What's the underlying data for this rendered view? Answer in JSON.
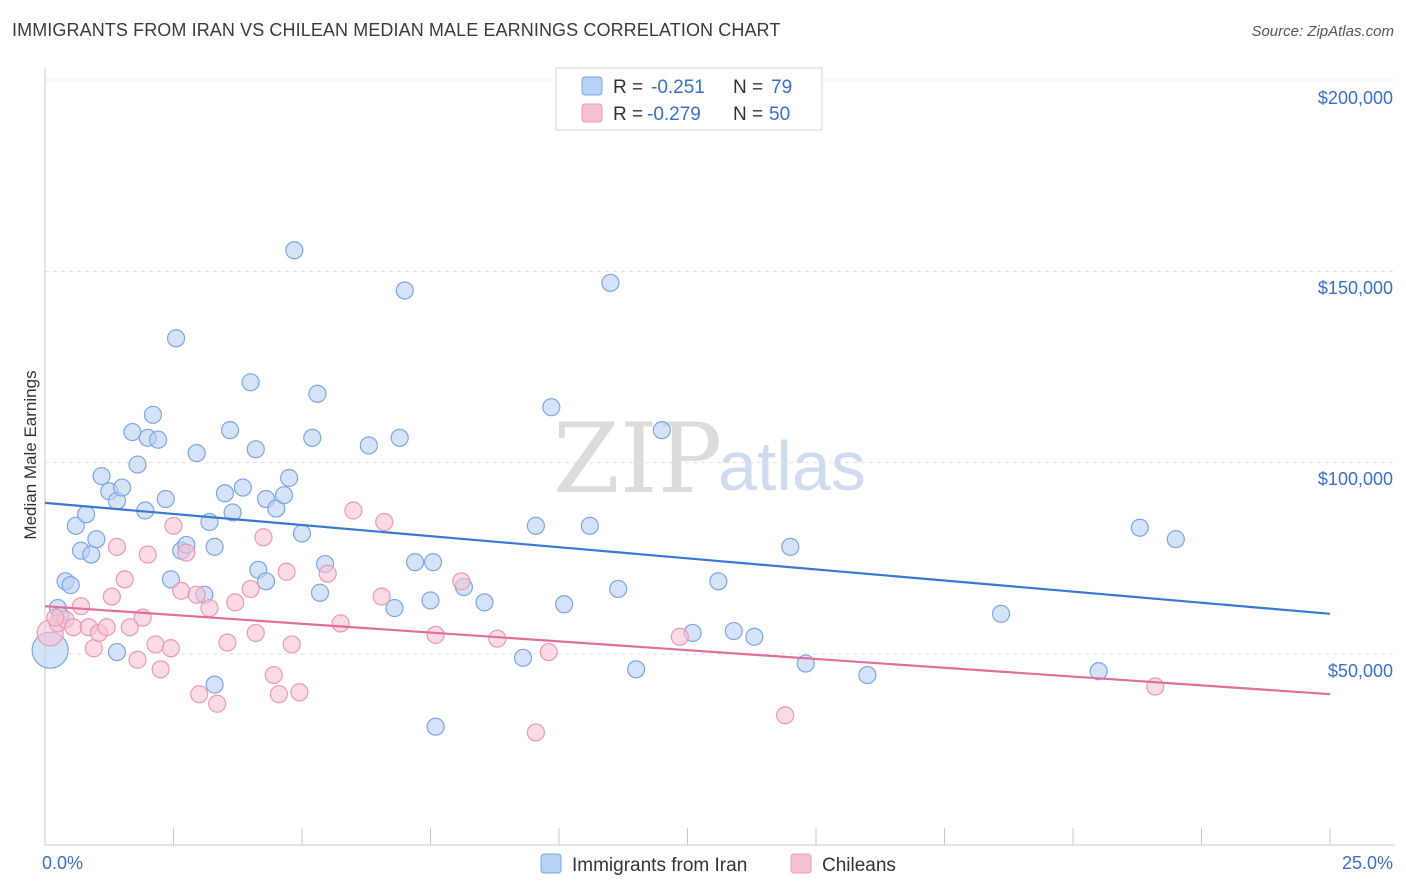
{
  "title": "IMMIGRANTS FROM IRAN VS CHILEAN MEDIAN MALE EARNINGS CORRELATION CHART",
  "source": "Source: ZipAtlas.com",
  "watermark": {
    "zip": "ZIP",
    "atlas": "atlas"
  },
  "colors": {
    "blue": "#3a78d4",
    "blue_fill": "#b9d1f3",
    "blue_stroke": "#7ea6e0",
    "pink": "#e0709a",
    "pink_fill": "#f6c2d3",
    "pink_stroke": "#ea9ab6",
    "grid": "#e0e0e0",
    "label": "#3b6fc4"
  },
  "legend": {
    "row1": {
      "r_label": "R =",
      "r_value": "-0.251",
      "n_label": "N =",
      "n_value": "79"
    },
    "row2": {
      "r_label": "R =",
      "r_value": "-0.279",
      "n_label": "N =",
      "n_value": "50"
    }
  },
  "chart_data": {
    "type": "scatter",
    "title": "IMMIGRANTS FROM IRAN VS CHILEAN MEDIAN MALE EARNINGS CORRELATION CHART",
    "xlabel": "",
    "ylabel": "Median Male Earnings",
    "xlim": [
      0,
      25
    ],
    "ylim": [
      10000,
      210000
    ],
    "x_tick_labels": [
      "0.0%",
      "25.0%"
    ],
    "y_tick_labels": [
      "$50,000",
      "$100,000",
      "$150,000",
      "$200,000"
    ],
    "y_tick_values": [
      50000,
      100000,
      150000,
      200000
    ],
    "grid": true,
    "series": [
      {
        "name": "Immigrants from Iran",
        "color": "#3a78d4",
        "r": -0.251,
        "n": 79,
        "trend": {
          "x": [
            0,
            25
          ],
          "y": [
            89500,
            60500
          ]
        },
        "points": [
          [
            0.1,
            51000
          ],
          [
            0.25,
            62000
          ],
          [
            0.4,
            69000
          ],
          [
            0.5,
            68000
          ],
          [
            0.6,
            83500
          ],
          [
            0.7,
            77000
          ],
          [
            0.8,
            86500
          ],
          [
            0.9,
            76000
          ],
          [
            1.0,
            80000
          ],
          [
            1.1,
            96500
          ],
          [
            1.25,
            92500
          ],
          [
            1.4,
            90000
          ],
          [
            1.5,
            93500
          ],
          [
            1.4,
            50500
          ],
          [
            1.7,
            108000
          ],
          [
            1.8,
            99500
          ],
          [
            1.95,
            87500
          ],
          [
            2.0,
            106500
          ],
          [
            2.1,
            112500
          ],
          [
            2.2,
            106000
          ],
          [
            2.35,
            90500
          ],
          [
            2.45,
            69500
          ],
          [
            2.55,
            132500
          ],
          [
            2.65,
            77000
          ],
          [
            2.75,
            78500
          ],
          [
            2.95,
            102500
          ],
          [
            3.1,
            65500
          ],
          [
            3.2,
            84500
          ],
          [
            3.3,
            78000
          ],
          [
            3.3,
            42000
          ],
          [
            3.5,
            92000
          ],
          [
            3.6,
            108500
          ],
          [
            3.65,
            87000
          ],
          [
            3.85,
            93500
          ],
          [
            4.0,
            121000
          ],
          [
            4.1,
            103500
          ],
          [
            4.15,
            72000
          ],
          [
            4.3,
            69000
          ],
          [
            4.3,
            90500
          ],
          [
            4.5,
            88000
          ],
          [
            4.65,
            91500
          ],
          [
            4.75,
            96000
          ],
          [
            4.85,
            155500
          ],
          [
            5.0,
            81500
          ],
          [
            5.2,
            106500
          ],
          [
            5.3,
            118000
          ],
          [
            5.35,
            66000
          ],
          [
            5.45,
            73500
          ],
          [
            6.3,
            104500
          ],
          [
            6.8,
            62000
          ],
          [
            6.9,
            106500
          ],
          [
            7.0,
            145000
          ],
          [
            7.2,
            74000
          ],
          [
            7.5,
            64000
          ],
          [
            7.55,
            74000
          ],
          [
            7.6,
            31000
          ],
          [
            8.15,
            67500
          ],
          [
            8.55,
            63500
          ],
          [
            9.3,
            49000
          ],
          [
            9.55,
            83500
          ],
          [
            9.85,
            114500
          ],
          [
            10.1,
            63000
          ],
          [
            10.6,
            83500
          ],
          [
            11.0,
            147000
          ],
          [
            11.15,
            67000
          ],
          [
            11.5,
            46000
          ],
          [
            12.0,
            108500
          ],
          [
            12.6,
            55500
          ],
          [
            13.1,
            69000
          ],
          [
            13.4,
            56000
          ],
          [
            13.8,
            54500
          ],
          [
            14.5,
            78000
          ],
          [
            14.8,
            47500
          ],
          [
            16.0,
            44500
          ],
          [
            18.6,
            60500
          ],
          [
            20.5,
            45500
          ],
          [
            21.3,
            83000
          ],
          [
            22.0,
            80000
          ],
          [
            0.3,
            60000
          ]
        ]
      },
      {
        "name": "Chileans",
        "color": "#e0709a",
        "r": -0.279,
        "n": 50,
        "trend": {
          "x": [
            0,
            25
          ],
          "y": [
            62500,
            39500
          ]
        },
        "points": [
          [
            0.1,
            55500
          ],
          [
            0.25,
            58000
          ],
          [
            0.4,
            59000
          ],
          [
            0.55,
            57000
          ],
          [
            0.7,
            62500
          ],
          [
            0.85,
            57000
          ],
          [
            0.95,
            51500
          ],
          [
            1.05,
            55500
          ],
          [
            1.2,
            57000
          ],
          [
            1.3,
            65000
          ],
          [
            1.4,
            78000
          ],
          [
            1.55,
            69500
          ],
          [
            1.65,
            57000
          ],
          [
            1.8,
            48500
          ],
          [
            1.9,
            59500
          ],
          [
            2.0,
            76000
          ],
          [
            2.15,
            52500
          ],
          [
            2.25,
            46000
          ],
          [
            2.45,
            51500
          ],
          [
            2.5,
            83500
          ],
          [
            2.65,
            66500
          ],
          [
            2.75,
            76500
          ],
          [
            2.95,
            65500
          ],
          [
            3.0,
            39500
          ],
          [
            3.2,
            62000
          ],
          [
            3.35,
            37000
          ],
          [
            3.55,
            53000
          ],
          [
            3.7,
            63500
          ],
          [
            4.0,
            67000
          ],
          [
            4.1,
            55500
          ],
          [
            4.25,
            80500
          ],
          [
            4.45,
            44500
          ],
          [
            4.55,
            39500
          ],
          [
            4.7,
            71500
          ],
          [
            4.8,
            52500
          ],
          [
            4.95,
            40000
          ],
          [
            5.5,
            71000
          ],
          [
            5.75,
            58000
          ],
          [
            6.0,
            87500
          ],
          [
            6.55,
            65000
          ],
          [
            6.6,
            84500
          ],
          [
            7.6,
            55000
          ],
          [
            8.1,
            69000
          ],
          [
            8.8,
            54000
          ],
          [
            9.55,
            29500
          ],
          [
            9.8,
            50500
          ],
          [
            12.35,
            54500
          ],
          [
            14.4,
            34000
          ],
          [
            21.6,
            41500
          ],
          [
            0.2,
            59500
          ]
        ]
      }
    ]
  },
  "bottom_legend": {
    "series1": "Immigrants from Iran",
    "series2": "Chileans"
  }
}
